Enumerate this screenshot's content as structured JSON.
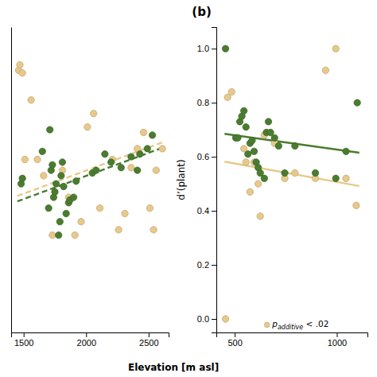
{
  "chart_data": [
    {
      "type": "scatter",
      "xlabel": "Elevation [m asl]",
      "xlim": [
        1400,
        2660
      ],
      "xticks": [
        1500,
        2000,
        2500
      ],
      "ylim": [
        -0.05,
        1.08
      ],
      "tick_labels": "x",
      "series": [
        {
          "type": "scatter",
          "marker": "circle",
          "color": "#e8c98a",
          "x": [
            1460,
            1470,
            1490,
            1510,
            1560,
            1610,
            1660,
            1730,
            1810,
            1860,
            1910,
            1960,
            2010,
            2060,
            2110,
            2210,
            2260,
            2310,
            2360,
            2410,
            2460,
            2510,
            2540,
            2560,
            2610
          ],
          "values": [
            0.92,
            0.94,
            0.91,
            0.59,
            0.81,
            0.59,
            0.53,
            0.31,
            0.55,
            0.45,
            0.31,
            0.36,
            0.71,
            0.76,
            0.41,
            0.59,
            0.33,
            0.39,
            0.56,
            0.63,
            0.69,
            0.41,
            0.33,
            0.55,
            0.63
          ]
        },
        {
          "type": "scatter",
          "marker": "circle",
          "color": "#4a7c2f",
          "x": [
            1480,
            1490,
            1650,
            1700,
            1710,
            1720,
            1730,
            1740,
            1750,
            1760,
            1780,
            1790,
            1800,
            1810,
            1820,
            1840,
            1860,
            1870,
            1900,
            1920,
            2050,
            2080,
            2150,
            2200,
            2280,
            2360,
            2410,
            2430,
            2490,
            2530
          ],
          "values": [
            0.5,
            0.52,
            0.62,
            0.41,
            0.7,
            0.55,
            0.57,
            0.45,
            0.47,
            0.5,
            0.31,
            0.36,
            0.53,
            0.58,
            0.49,
            0.39,
            0.43,
            0.44,
            0.45,
            0.51,
            0.54,
            0.55,
            0.61,
            0.58,
            0.56,
            0.6,
            0.55,
            0.61,
            0.63,
            0.68
          ]
        },
        {
          "type": "line",
          "line_style": "dashed",
          "color": "#e8c98a",
          "x": [
            1450,
            2620
          ],
          "values": [
            0.455,
            0.655
          ]
        },
        {
          "type": "line",
          "line_style": "dashed",
          "color": "#4a7c2f",
          "x": [
            1450,
            2620
          ],
          "values": [
            0.435,
            0.635
          ]
        }
      ]
    },
    {
      "type": "scatter",
      "title": "(b)",
      "ylabel": "d’(plant)",
      "annotation": [
        "p",
        "additive",
        " < .02"
      ],
      "xlim": [
        410,
        1150
      ],
      "xticks": [
        500,
        1000
      ],
      "ylim": [
        -0.05,
        1.08
      ],
      "yticks": [
        {
          "value": 0,
          "label": "0.0"
        },
        0.2,
        0.4,
        0.6,
        0.8,
        {
          "value": 1,
          "label": "1.0"
        }
      ],
      "series": [
        {
          "type": "scatter",
          "marker": "circle",
          "color": "#e8c98a",
          "x": [
            455,
            465,
            485,
            545,
            555,
            575,
            595,
            615,
            625,
            645,
            695,
            745,
            795,
            895,
            945,
            995,
            1045,
            1095
          ],
          "values": [
            0.0,
            0.82,
            0.84,
            0.63,
            0.58,
            0.47,
            0.58,
            0.5,
            0.38,
            0.68,
            0.65,
            0.52,
            0.54,
            0.52,
            0.92,
            1.0,
            0.52,
            0.42
          ]
        },
        {
          "type": "scatter",
          "marker": "circle",
          "color": "#4a7c2f",
          "x": [
            455,
            505,
            515,
            525,
            535,
            545,
            555,
            565,
            575,
            585,
            595,
            605,
            615,
            625,
            645,
            655,
            665,
            675,
            695,
            715,
            745,
            795,
            895,
            995,
            1045,
            1100
          ],
          "values": [
            1.0,
            0.67,
            0.67,
            0.73,
            0.75,
            0.77,
            0.71,
            0.61,
            0.65,
            0.66,
            0.62,
            0.58,
            0.56,
            0.54,
            0.52,
            0.69,
            0.73,
            0.69,
            0.67,
            0.64,
            0.54,
            0.64,
            0.54,
            0.52,
            0.62,
            0.8
          ]
        },
        {
          "type": "line",
          "line_style": "solid",
          "color": "#e8c98a",
          "x": [
            450,
            1110
          ],
          "values": [
            0.582,
            0.492
          ]
        },
        {
          "type": "line",
          "line_style": "solid",
          "color": "#4a7c2f",
          "x": [
            450,
            1110
          ],
          "values": [
            0.685,
            0.615
          ]
        }
      ]
    }
  ]
}
